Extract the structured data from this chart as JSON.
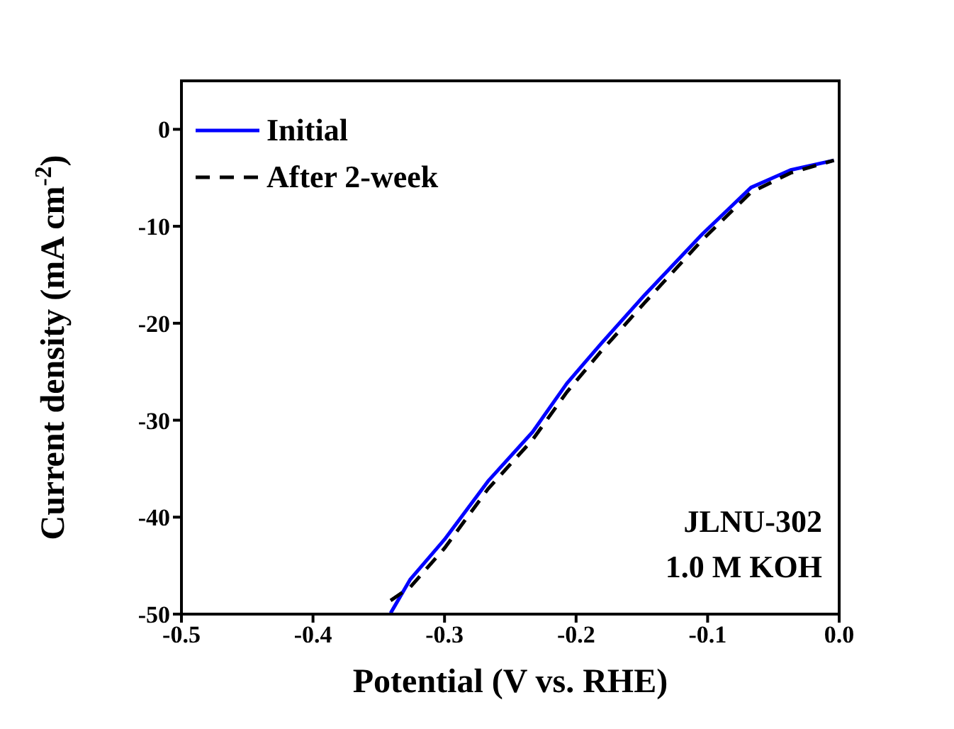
{
  "chart_data": {
    "type": "line",
    "xlabel": "Potential (V vs. RHE)",
    "ylabel": "Current density (mA cm$^{-2}$)",
    "x": [
      -0.341,
      -0.326,
      -0.3,
      -0.267,
      -0.233,
      -0.207,
      -0.181,
      -0.148,
      -0.104,
      -0.067,
      -0.037,
      -0.004
    ],
    "series": [
      {
        "name": "Initial",
        "color": "#0000ff",
        "line_style": "solid",
        "values": [
          -49.9,
          -46.4,
          -42.3,
          -36.3,
          -31.2,
          -26.2,
          -22.1,
          -17.1,
          -10.8,
          -6.0,
          -4.2,
          -3.2
        ]
      },
      {
        "name": "After 2-week",
        "color": "#000000",
        "line_style": "dashed",
        "values": [
          -48.6,
          -47.2,
          -43.2,
          -37.1,
          -32.0,
          -27.1,
          -22.9,
          -17.9,
          -11.4,
          -6.5,
          -4.5,
          -3.2
        ]
      }
    ],
    "xlim": [
      -0.5,
      0.0
    ],
    "xticks": [
      -0.5,
      -0.4,
      -0.3,
      -0.2,
      -0.1,
      {
        "value": 0,
        "label": "0.0"
      }
    ],
    "ylim": [
      -50,
      5
    ],
    "yticks": [
      -50,
      -40,
      -30,
      -20,
      -10,
      0
    ],
    "legend": "top left",
    "marker": "none",
    "annotations": [
      "JLNU-302",
      "1.0 M KOH"
    ]
  }
}
